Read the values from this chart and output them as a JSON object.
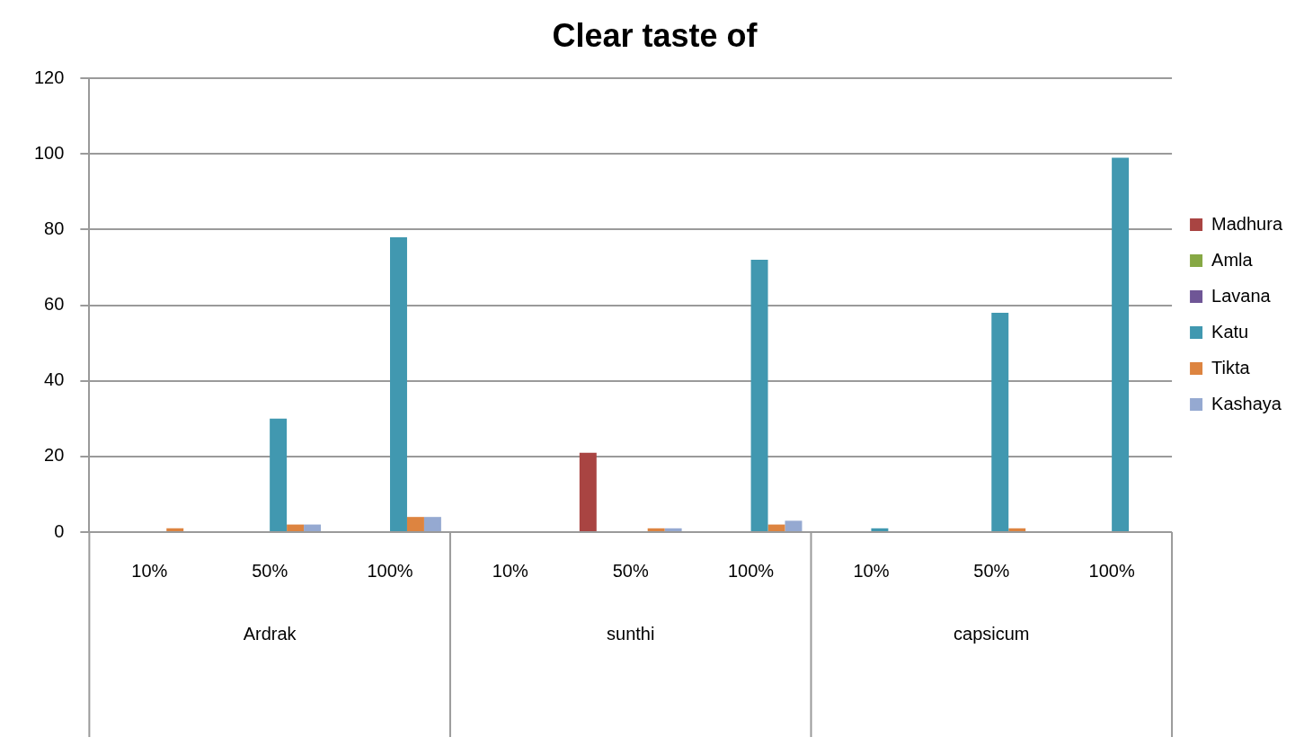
{
  "chart_data": {
    "type": "bar",
    "title": "Clear taste of",
    "categories": [
      "10%",
      "50%",
      "100%",
      "10%",
      "50%",
      "100%",
      "10%",
      "50%",
      "100%"
    ],
    "series": [
      {
        "name": "Madhura",
        "color": "#a94442",
        "values": [
          0,
          0,
          0,
          0,
          21,
          0,
          0,
          0,
          0
        ]
      },
      {
        "name": "Amla",
        "color": "#86a844",
        "values": [
          0,
          0,
          0,
          0,
          0,
          0,
          0,
          0,
          0
        ]
      },
      {
        "name": "Lavana",
        "color": "#6f5696",
        "values": [
          0,
          0,
          0,
          0,
          0,
          0,
          0,
          0,
          0
        ]
      },
      {
        "name": "Katu",
        "color": "#4198b0",
        "values": [
          0,
          30,
          78,
          0,
          0,
          72,
          1,
          58,
          99
        ]
      },
      {
        "name": "Tikta",
        "color": "#dd8440",
        "values": [
          1,
          2,
          4,
          0,
          1,
          2,
          0,
          1,
          0
        ]
      },
      {
        "name": "Kashaya",
        "color": "#95a9d1",
        "values": [
          0,
          2,
          4,
          0,
          1,
          3,
          0,
          0,
          0
        ]
      }
    ],
    "annotations": [
      "Ardrak",
      "sunthi",
      "capsicum"
    ],
    "ylim": [
      0,
      120
    ],
    "yticks": [
      0,
      20,
      40,
      60,
      80,
      100,
      120
    ],
    "grid": "y",
    "legend": "right"
  }
}
